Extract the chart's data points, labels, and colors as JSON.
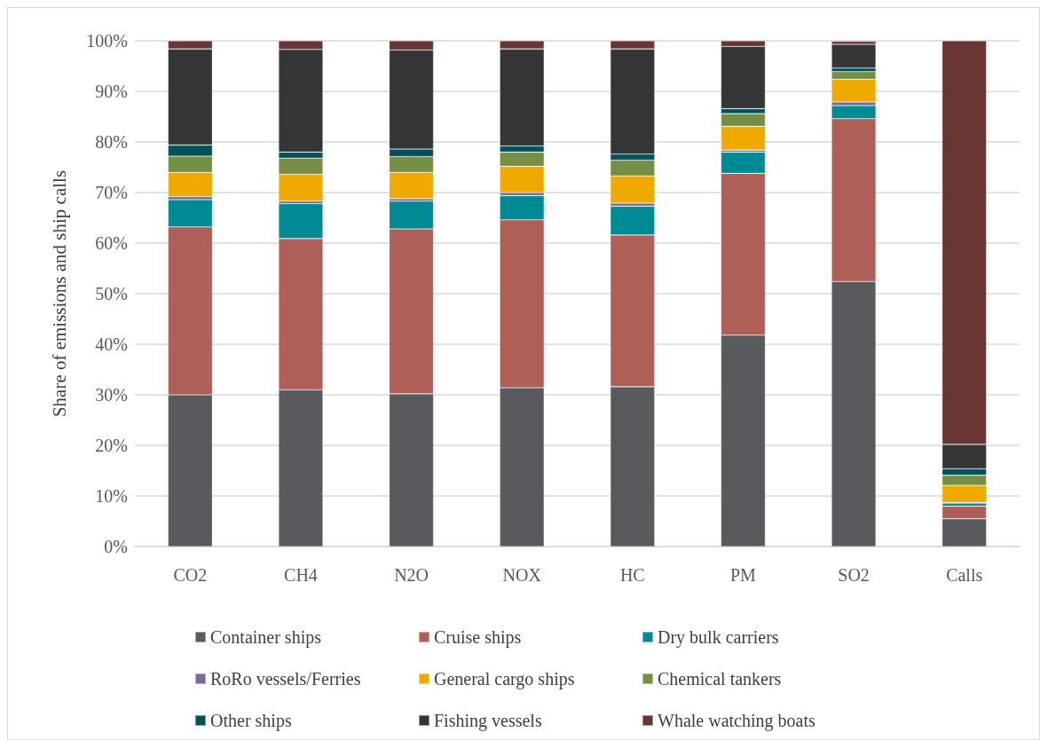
{
  "chart_data": {
    "type": "bar",
    "stacked": true,
    "ylabel": "Share of emissions and ship calls",
    "categories": [
      "CO2",
      "CH4",
      "N2O",
      "NOX",
      "HC",
      "PM",
      "SO2",
      "Calls"
    ],
    "series": [
      {
        "name": "Container ships",
        "color": "#595a5e",
        "values": [
          30.0,
          31.0,
          30.2,
          31.4,
          31.6,
          41.8,
          52.4,
          5.5
        ]
      },
      {
        "name": "Cruise ships",
        "color": "#ae5f57",
        "values": [
          33.2,
          29.9,
          32.6,
          33.2,
          30.0,
          32.0,
          32.2,
          2.5
        ]
      },
      {
        "name": "Dry bulk carriers",
        "color": "#008b94",
        "values": [
          5.4,
          6.9,
          5.5,
          4.8,
          5.7,
          4.2,
          2.6,
          0.6
        ]
      },
      {
        "name": "RoRo vessels/Ferries",
        "color": "#7d6a96",
        "values": [
          0.6,
          0.5,
          0.5,
          0.6,
          0.6,
          0.4,
          0.7,
          0.1
        ]
      },
      {
        "name": "General cargo ships",
        "color": "#eeaa00",
        "values": [
          4.8,
          5.3,
          5.2,
          5.2,
          5.4,
          4.7,
          4.5,
          3.4
        ]
      },
      {
        "name": "Chemical tankers",
        "color": "#748f45",
        "values": [
          3.2,
          3.2,
          3.1,
          2.8,
          3.1,
          2.5,
          1.5,
          2.0
        ]
      },
      {
        "name": "Other ships",
        "color": "#01515a",
        "values": [
          2.2,
          1.2,
          1.5,
          1.2,
          1.2,
          1.0,
          0.7,
          1.3
        ]
      },
      {
        "name": "Fishing vessels",
        "color": "#333537",
        "values": [
          19.0,
          20.3,
          19.6,
          19.2,
          20.8,
          12.3,
          4.7,
          4.8
        ]
      },
      {
        "name": "Whale watching boats",
        "color": "#6a3634",
        "values": [
          1.6,
          1.7,
          1.8,
          1.6,
          1.6,
          1.1,
          0.6,
          79.8
        ]
      }
    ],
    "ylim": [
      0,
      100
    ],
    "yticks": [
      {
        "value": 0,
        "label": "0%"
      },
      {
        "value": 10,
        "label": "10%"
      },
      {
        "value": 20,
        "label": "20%"
      },
      {
        "value": 30,
        "label": "30%"
      },
      {
        "value": 40,
        "label": "40%"
      },
      {
        "value": 50,
        "label": "50%"
      },
      {
        "value": 60,
        "label": "60%"
      },
      {
        "value": 70,
        "label": "70%"
      },
      {
        "value": 80,
        "label": "80%"
      },
      {
        "value": 90,
        "label": "90%"
      },
      {
        "value": 100,
        "label": "100%"
      }
    ],
    "grid": "y",
    "legend": "bottom"
  }
}
